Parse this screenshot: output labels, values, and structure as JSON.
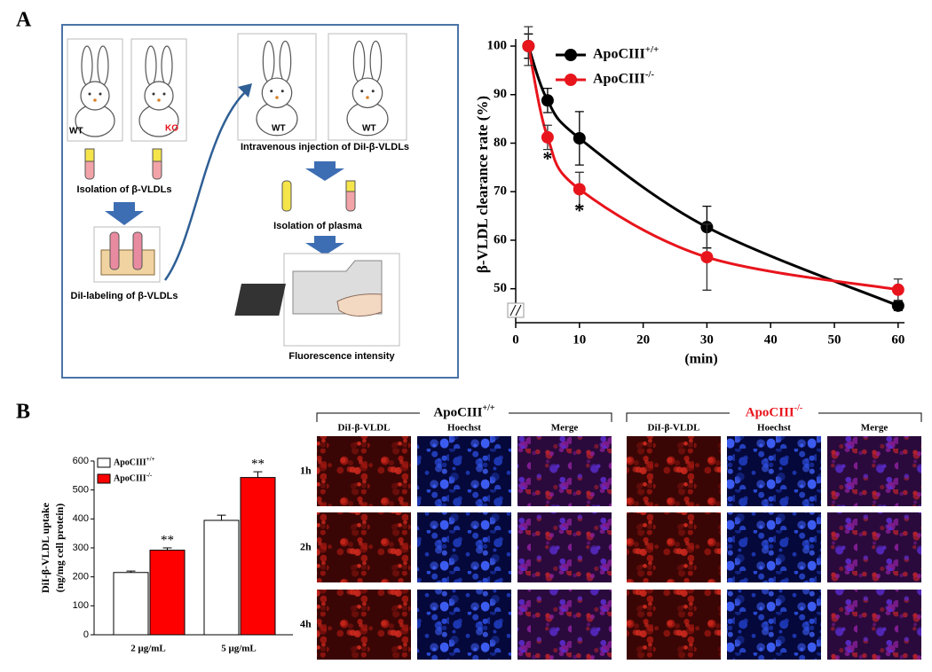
{
  "panel_labels": [
    "A",
    "B"
  ],
  "diagram": {
    "rabbit_labels": [
      "WT",
      "KO",
      "WT",
      "WT"
    ],
    "steps": [
      "Isolation of β-VLDLs",
      "DiI-labeling of β-VLDLs",
      "Intravenous injection of DiI-β-VLDLs",
      "Isolation of plasma",
      "Fluorescence intensity"
    ]
  },
  "chart_data": [
    {
      "type": "line",
      "ylabel": "β-VLDL clearance rate (%)",
      "xlabel": "(min)",
      "x": [
        2,
        5,
        10,
        30,
        60
      ],
      "series": [
        {
          "name": "ApoCIII+/+",
          "color": "#000000",
          "values": [
            100,
            88.8,
            81,
            62.7,
            46.5
          ],
          "errors": [
            2.5,
            2.5,
            5.5,
            4.3,
            1
          ]
        },
        {
          "name": "ApoCIII-/-",
          "color": "#e8141c",
          "values": [
            100,
            81.2,
            70.5,
            56.5,
            49.8
          ],
          "errors": [
            4,
            2.5,
            3.5,
            6.8,
            2.2
          ]
        }
      ],
      "annotations": [
        {
          "text": "*",
          "x": 5
        },
        {
          "text": "*",
          "x": 10
        }
      ],
      "xlim": [
        0,
        61
      ],
      "ylim": [
        43,
        100
      ],
      "xticks": [
        0,
        10,
        20,
        30,
        40,
        50,
        60
      ],
      "yticks": [
        50,
        60,
        70,
        80,
        90,
        100
      ],
      "axis_break": true,
      "legend": "upper right"
    },
    {
      "type": "bar",
      "ylabel": [
        "DiI-β-VLDL uptake",
        "(ng/mg cell protein)"
      ],
      "categories": [
        "2 μg/mL",
        "5 μg/mL"
      ],
      "series": [
        {
          "name": "ApoCIII+/+",
          "color": "#ffffff",
          "values": [
            215,
            395
          ],
          "errors": [
            5,
            18
          ]
        },
        {
          "name": "ApoCIII-/-",
          "color": "#ff0000",
          "values": [
            292,
            543
          ],
          "errors": [
            8,
            20
          ]
        }
      ],
      "annotations": [
        {
          "text": "**",
          "category": "2 μg/mL"
        },
        {
          "text": "**",
          "category": "5 μg/mL"
        }
      ],
      "ylim": [
        0,
        600
      ],
      "yticks": [
        0,
        100,
        200,
        300,
        400,
        500,
        600
      ],
      "legend": "upper left"
    }
  ],
  "micrographs": {
    "groups": [
      {
        "name": "ApoCIII+/+",
        "color": "#000000"
      },
      {
        "name": "ApoCIII-/-",
        "color": "#e8141c"
      }
    ],
    "columns": [
      "DiI-β-VLDL",
      "Hoechst",
      "Merge"
    ],
    "rows": [
      "1h",
      "2h",
      "4h"
    ]
  }
}
